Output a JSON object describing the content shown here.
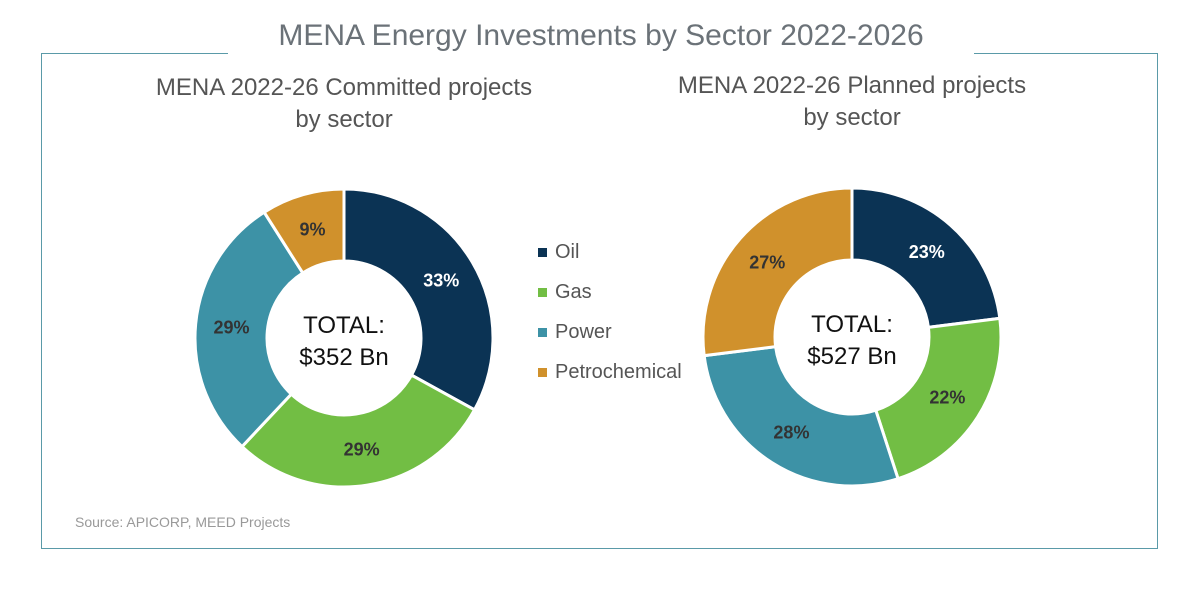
{
  "title": "MENA Energy Investments by Sector 2022-2026",
  "source": "Source: APICORP, MEED Projects",
  "legend": [
    {
      "label": "Oil",
      "color": "#0b3354"
    },
    {
      "label": "Gas",
      "color": "#72be44"
    },
    {
      "label": "Power",
      "color": "#3d92a6"
    },
    {
      "label": "Petrochemical",
      "color": "#d0912c"
    }
  ],
  "chart_data": [
    {
      "type": "pie",
      "subtype": "donut",
      "title": [
        "MENA 2022-26 Committed projects",
        "by sector"
      ],
      "center_text": [
        "TOTAL:",
        "$352 Bn"
      ],
      "categories": [
        "Oil",
        "Gas",
        "Power",
        "Petrochemical"
      ],
      "values": [
        33,
        29,
        29,
        9
      ],
      "data_labels": [
        "33%",
        "29%",
        "29%",
        "9%"
      ],
      "unit": "%"
    },
    {
      "type": "pie",
      "subtype": "donut",
      "title": [
        "MENA 2022-26 Planned projects",
        "by sector"
      ],
      "center_text": [
        "TOTAL:",
        "$527 Bn"
      ],
      "categories": [
        "Oil",
        "Gas",
        "Power",
        "Petrochemical"
      ],
      "values": [
        23,
        22,
        28,
        27
      ],
      "data_labels": [
        "23%",
        "22%",
        "28%",
        "27%"
      ],
      "unit": "%"
    }
  ]
}
